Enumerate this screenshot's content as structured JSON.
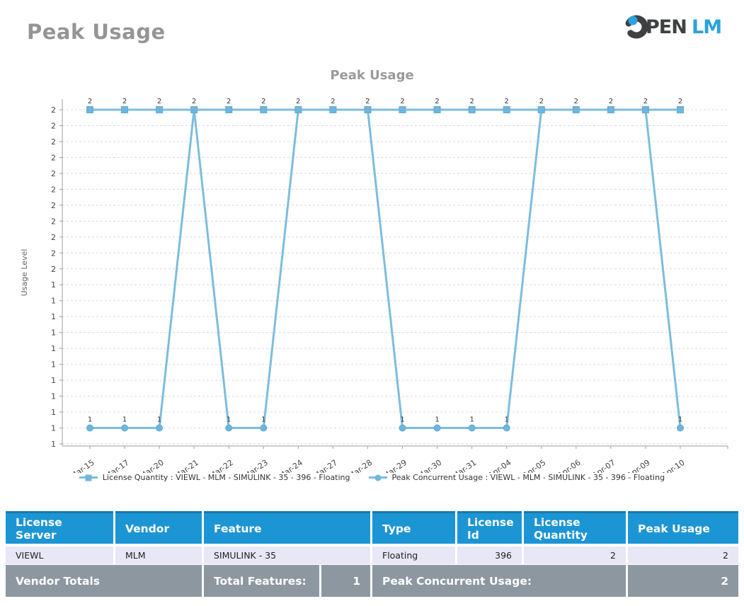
{
  "page": {
    "title": "Peak Usage"
  },
  "logo": {
    "pen": "PEN",
    "lm": "LM",
    "dark_color": "#3e4041",
    "blue_color": "#2aa3de"
  },
  "chart": {
    "legend": [
      {
        "marker": "square",
        "label": "License Quantity : VIEWL - MLM - SIMULINK - 35 - 396 - Floating"
      },
      {
        "marker": "circle",
        "label": "Peak Concurrent Usage : VIEWL - MLM - SIMULINK - 35 - 396 - Floating"
      }
    ]
  },
  "chart_data": {
    "type": "line",
    "title": "Peak Usage",
    "ylabel": "Usage Level",
    "x": [
      "Mar-15",
      "Mar-17",
      "Mar-20",
      "Mar-21",
      "Mar-22",
      "Mar-23",
      "Mar-24",
      "Mar-27",
      "Mar-28",
      "Mar-29",
      "Mar-30",
      "Mar-31",
      "Apr-04",
      "Apr-05",
      "Apr-06",
      "Apr-07",
      "Apr-09",
      "Apr-10"
    ],
    "series": [
      {
        "name": "License Quantity : VIEWL - MLM - SIMULINK - 35 - 396 - Floating",
        "marker": "square",
        "values": [
          2,
          2,
          2,
          2,
          2,
          2,
          2,
          2,
          2,
          2,
          2,
          2,
          2,
          2,
          2,
          2,
          2,
          2
        ]
      },
      {
        "name": "Peak Concurrent Usage : VIEWL - MLM - SIMULINK - 35 - 396 - Floating",
        "marker": "circle",
        "values": [
          1,
          1,
          1,
          2,
          1,
          1,
          2,
          2,
          2,
          1,
          1,
          1,
          1,
          2,
          2,
          2,
          2,
          1
        ]
      }
    ],
    "ytick_top": 2.0,
    "ytick_step": 0.05,
    "ytick_count": 22,
    "ytick_labels": [
      "2",
      "2",
      "2",
      "2",
      "2",
      "2",
      "2",
      "2",
      "2",
      "2",
      "2",
      "1",
      "1",
      "1",
      "1",
      "1",
      "1",
      "1",
      "1",
      "1",
      "1",
      "1"
    ],
    "ylim": [
      0.95,
      2.05
    ],
    "grid": "horizontal-dashed",
    "legend_position": "bottom",
    "line_color": "#7cbdde",
    "marker_fill": "#6fb6dc",
    "marker_stroke": "#5fabd3"
  },
  "table": {
    "headers": [
      "License Server",
      "Vendor",
      "Feature",
      "Type",
      "License Id",
      "License Quantity",
      "Peak Usage"
    ],
    "numeric_columns": [
      4,
      5,
      6
    ],
    "rows": [
      [
        "VIEWL",
        "MLM",
        "SIMULINK - 35",
        "Floating",
        "396",
        "2",
        "2"
      ]
    ],
    "totals": {
      "vendor_totals_label": "Vendor Totals",
      "total_features_label": "Total Features:",
      "total_features_value": "1",
      "peak_concurrent_label": "Peak Concurrent Usage:",
      "peak_concurrent_value": "2"
    }
  }
}
